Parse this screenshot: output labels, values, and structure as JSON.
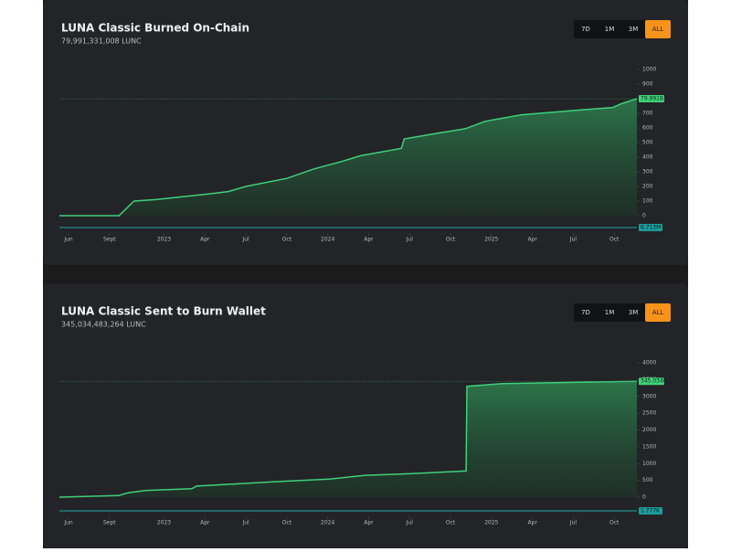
{
  "chart_data": [
    {
      "type": "area",
      "title": "LUNA Classic Burned On-Chain",
      "subtitle": "79,991,331,008 LUNC",
      "ranges": [
        "7D",
        "1M",
        "3M",
        "ALL"
      ],
      "active_range": "ALL",
      "color": "#3fd07a",
      "x": [
        -0.67,
        3.7,
        4.8,
        6.4,
        10.4,
        11.7,
        13,
        16,
        18,
        20,
        21.4,
        24.4,
        24.6,
        27.1,
        29.1,
        30.5,
        33.2,
        37.8,
        39.9,
        40.5,
        41.66
      ],
      "values": [
        0,
        0,
        100,
        110,
        150,
        165,
        200,
        255,
        320,
        370,
        410,
        460,
        525,
        565,
        595,
        645,
        690,
        725,
        740,
        765,
        799.91
      ],
      "last_label": "79.991B",
      "volume_label": "6.713M",
      "xlim": [
        -0.67,
        41.66
      ],
      "xticks": [
        {
          "value": 0,
          "label": "Jun"
        },
        {
          "value": 3,
          "label": "Sept"
        },
        {
          "value": 7,
          "label": "2023"
        },
        {
          "value": 10,
          "label": "Apr"
        },
        {
          "value": 13,
          "label": "Jul"
        },
        {
          "value": 16,
          "label": "Oct"
        },
        {
          "value": 19,
          "label": "2024"
        },
        {
          "value": 22,
          "label": "Apr"
        },
        {
          "value": 25,
          "label": "Jul"
        },
        {
          "value": 28,
          "label": "Oct"
        },
        {
          "value": 31,
          "label": "2025"
        },
        {
          "value": 34,
          "label": "Apr"
        },
        {
          "value": 37,
          "label": "Jul"
        },
        {
          "value": 40,
          "label": "Oct"
        }
      ],
      "ylim": [
        0,
        1000
      ],
      "yticks": [
        0,
        100,
        200,
        300,
        400,
        500,
        600,
        700,
        800,
        900,
        1000
      ]
    },
    {
      "type": "area",
      "title": "LUNA Classic Sent to Burn Wallet",
      "subtitle": "345,034,483,264 LUNC",
      "ranges": [
        "7D",
        "1M",
        "3M",
        "ALL"
      ],
      "active_range": "ALL",
      "color": "#3fd07a",
      "x": [
        -0.67,
        3.68,
        4.35,
        5.69,
        9.04,
        9.38,
        15.07,
        19.09,
        21.77,
        25.12,
        29.14,
        29.2,
        31.8,
        41.66
      ],
      "values": [
        0,
        50,
        130,
        200,
        250,
        330,
        460,
        540,
        650,
        700,
        780,
        3300,
        3380,
        3450.34
      ],
      "last_label": "345.034B",
      "volume_label": "1.777K",
      "xlim": [
        -0.67,
        41.66
      ],
      "xticks": [
        {
          "value": 0,
          "label": "Jun"
        },
        {
          "value": 3,
          "label": "Sept"
        },
        {
          "value": 7,
          "label": "2023"
        },
        {
          "value": 10,
          "label": "Apr"
        },
        {
          "value": 13,
          "label": "Jul"
        },
        {
          "value": 16,
          "label": "Oct"
        },
        {
          "value": 19,
          "label": "2024"
        },
        {
          "value": 22,
          "label": "Apr"
        },
        {
          "value": 25,
          "label": "Jul"
        },
        {
          "value": 28,
          "label": "Oct"
        },
        {
          "value": 31,
          "label": "2025"
        },
        {
          "value": 34,
          "label": "Apr"
        },
        {
          "value": 37,
          "label": "Jul"
        },
        {
          "value": 40,
          "label": "Oct"
        }
      ],
      "ylim": [
        0,
        4000
      ],
      "yticks": [
        0,
        500,
        1000,
        1500,
        2000,
        2500,
        3000,
        3500,
        4000
      ]
    }
  ]
}
